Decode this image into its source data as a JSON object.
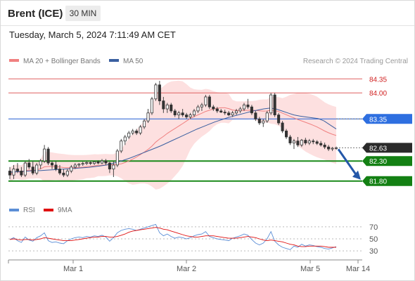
{
  "header": {
    "title": "Brent (ICE)",
    "timeframe": "30 MIN",
    "datetime": "Tuesday, March 5, 2024 7:11:49 AM CET"
  },
  "legend": [
    {
      "name": "MA 20 + Bollinger Bands",
      "color": "#f08080"
    },
    {
      "name": "MA 50",
      "color": "#3a5fa0"
    }
  ],
  "credit": "Research © 2024 Trading Central",
  "chart_data": [
    {
      "type": "candlestick",
      "ylim": [
        81.55,
        84.6
      ],
      "x_ticks": [
        "Mar 1",
        "Mar 2",
        "Mar 5",
        "Mar 14"
      ],
      "levels": [
        {
          "label": "84.35",
          "value": 84.35,
          "style": "resistance"
        },
        {
          "label": "84.00",
          "value": 84.0,
          "style": "resistance"
        },
        {
          "label": "83.35",
          "value": 83.35,
          "style": "ma50"
        },
        {
          "label": "82.63",
          "value": 82.63,
          "style": "last"
        },
        {
          "label": "82.30",
          "value": 82.3,
          "style": "support"
        },
        {
          "label": "81.80",
          "value": 81.8,
          "style": "target"
        }
      ],
      "series": [
        {
          "kind": "ohlc",
          "values": [
            [
              82.05,
              82.15,
              81.85,
              81.95
            ],
            [
              81.95,
              82.2,
              81.85,
              82.1
            ],
            [
              82.1,
              82.25,
              82.0,
              82.05
            ],
            [
              82.05,
              82.15,
              81.9,
              81.95
            ],
            [
              81.95,
              82.3,
              81.9,
              82.25
            ],
            [
              82.25,
              82.35,
              82.1,
              82.15
            ],
            [
              82.15,
              82.3,
              81.95,
              82.0
            ],
            [
              82.0,
              82.25,
              81.95,
              82.2
            ],
            [
              82.2,
              82.35,
              82.1,
              82.3
            ],
            [
              82.3,
              82.7,
              82.25,
              82.6
            ],
            [
              82.6,
              82.65,
              82.2,
              82.25
            ],
            [
              82.25,
              82.3,
              82.1,
              82.2
            ],
            [
              82.2,
              82.3,
              82.05,
              82.1
            ],
            [
              82.1,
              82.2,
              81.95,
              82.0
            ],
            [
              82.0,
              82.1,
              81.9,
              81.95
            ],
            [
              81.95,
              82.1,
              81.9,
              82.05
            ],
            [
              82.05,
              82.2,
              82.0,
              82.15
            ],
            [
              82.15,
              82.25,
              82.1,
              82.2
            ],
            [
              82.2,
              82.25,
              82.15,
              82.22
            ],
            [
              82.22,
              82.28,
              82.18,
              82.24
            ],
            [
              82.24,
              82.3,
              82.2,
              82.26
            ],
            [
              82.26,
              82.3,
              82.2,
              82.24
            ],
            [
              82.24,
              82.3,
              82.2,
              82.28
            ],
            [
              82.28,
              82.32,
              82.22,
              82.25
            ],
            [
              82.25,
              82.35,
              82.22,
              82.3
            ],
            [
              82.3,
              82.35,
              82.2,
              82.25
            ],
            [
              82.25,
              82.28,
              82.0,
              82.1
            ],
            [
              82.1,
              82.3,
              81.9,
              82.2
            ],
            [
              82.2,
              82.6,
              82.15,
              82.55
            ],
            [
              82.55,
              82.85,
              82.5,
              82.8
            ],
            [
              82.8,
              82.95,
              82.7,
              82.9
            ],
            [
              82.9,
              83.05,
              82.85,
              83.0
            ],
            [
              83.0,
              83.1,
              82.95,
              83.05
            ],
            [
              83.05,
              83.1,
              82.95,
              83.0
            ],
            [
              83.0,
              83.2,
              82.95,
              83.15
            ],
            [
              83.15,
              83.35,
              83.1,
              83.3
            ],
            [
              83.3,
              83.6,
              83.25,
              83.5
            ],
            [
              83.5,
              83.9,
              83.45,
              83.85
            ],
            [
              83.85,
              84.25,
              83.8,
              84.2
            ],
            [
              84.2,
              84.3,
              83.7,
              83.8
            ],
            [
              83.8,
              83.9,
              83.5,
              83.6
            ],
            [
              83.6,
              83.75,
              83.5,
              83.7
            ],
            [
              83.7,
              83.75,
              83.5,
              83.55
            ],
            [
              83.55,
              83.6,
              83.4,
              83.45
            ],
            [
              83.45,
              83.55,
              83.35,
              83.5
            ],
            [
              83.5,
              83.6,
              83.4,
              83.45
            ],
            [
              83.45,
              83.5,
              83.35,
              83.4
            ],
            [
              83.4,
              83.5,
              83.35,
              83.45
            ],
            [
              83.45,
              83.6,
              83.4,
              83.55
            ],
            [
              83.55,
              83.7,
              83.5,
              83.65
            ],
            [
              83.65,
              83.75,
              83.55,
              83.7
            ],
            [
              83.7,
              83.95,
              83.65,
              83.9
            ],
            [
              83.9,
              83.95,
              83.6,
              83.65
            ],
            [
              83.65,
              83.7,
              83.55,
              83.6
            ],
            [
              83.6,
              83.65,
              83.5,
              83.55
            ],
            [
              83.55,
              83.6,
              83.5,
              83.52
            ],
            [
              83.52,
              83.58,
              83.45,
              83.5
            ],
            [
              83.5,
              83.55,
              83.42,
              83.45
            ],
            [
              83.45,
              83.55,
              83.4,
              83.5
            ],
            [
              83.5,
              83.6,
              83.45,
              83.55
            ],
            [
              83.55,
              83.65,
              83.5,
              83.6
            ],
            [
              83.6,
              83.75,
              83.55,
              83.7
            ],
            [
              83.7,
              83.85,
              83.6,
              83.65
            ],
            [
              83.65,
              83.7,
              83.45,
              83.5
            ],
            [
              83.5,
              83.55,
              83.3,
              83.35
            ],
            [
              83.35,
              83.4,
              83.2,
              83.25
            ],
            [
              83.25,
              83.35,
              83.15,
              83.3
            ],
            [
              83.3,
              83.55,
              83.25,
              83.5
            ],
            [
              83.5,
              84.0,
              83.45,
              83.95
            ],
            [
              83.95,
              84.0,
              83.4,
              83.45
            ],
            [
              83.45,
              83.5,
              83.2,
              83.25
            ],
            [
              83.25,
              83.3,
              83.0,
              83.05
            ],
            [
              83.05,
              83.1,
              82.85,
              82.9
            ],
            [
              82.9,
              82.95,
              82.7,
              82.75
            ],
            [
              82.75,
              82.85,
              82.6,
              82.8
            ],
            [
              82.8,
              82.9,
              82.65,
              82.7
            ],
            [
              82.7,
              82.85,
              82.65,
              82.82
            ],
            [
              82.82,
              82.88,
              82.7,
              82.75
            ],
            [
              82.75,
              82.85,
              82.7,
              82.8
            ],
            [
              82.8,
              82.85,
              82.72,
              82.78
            ],
            [
              82.78,
              82.82,
              82.7,
              82.74
            ],
            [
              82.74,
              82.8,
              82.66,
              82.7
            ],
            [
              82.7,
              82.76,
              82.6,
              82.65
            ],
            [
              82.65,
              82.7,
              82.55,
              82.6
            ],
            [
              82.6,
              82.65,
              82.55,
              82.62
            ],
            [
              82.62,
              82.66,
              82.58,
              82.63
            ]
          ]
        },
        {
          "name": "MA 50",
          "values": [
            82.02,
            82.03,
            82.04,
            82.05,
            82.06,
            82.06,
            82.07,
            82.08,
            82.09,
            82.1,
            82.11,
            82.12,
            82.13,
            82.14,
            82.16,
            82.18,
            82.2,
            82.24,
            82.28,
            82.33,
            82.38,
            82.44,
            82.5,
            82.56,
            82.62,
            82.68,
            82.75,
            82.82,
            82.89,
            82.96,
            83.03,
            83.1,
            83.16,
            83.22,
            83.28,
            83.33,
            83.38,
            83.42,
            83.46,
            83.5,
            83.54,
            83.57,
            83.6,
            83.62,
            83.6,
            83.55,
            83.5,
            83.45,
            83.42,
            83.4,
            83.38,
            83.36,
            83.3,
            83.2,
            83.1
          ]
        }
      ],
      "projection": {
        "from": 82.63,
        "to": 81.8
      }
    },
    {
      "type": "line",
      "ylim": [
        22,
        78
      ],
      "y_ticks": [
        "70",
        "50",
        "30"
      ],
      "series": [
        {
          "name": "RSI",
          "values": [
            49,
            52,
            47,
            44,
            53,
            48,
            46,
            52,
            55,
            60,
            47,
            44,
            45,
            43,
            42,
            47,
            50,
            52,
            53,
            52,
            54,
            53,
            55,
            54,
            56,
            53,
            46,
            52,
            60,
            64,
            66,
            67,
            66,
            64,
            66,
            68,
            70,
            72,
            74,
            60,
            55,
            58,
            54,
            51,
            53,
            52,
            50,
            52,
            55,
            57,
            58,
            62,
            54,
            52,
            50,
            49,
            48,
            47,
            51,
            53,
            55,
            58,
            56,
            49,
            43,
            40,
            43,
            50,
            62,
            46,
            40,
            36,
            34,
            32,
            38,
            36,
            41,
            38,
            40,
            39,
            37,
            36,
            34,
            33,
            35,
            37
          ]
        },
        {
          "name": "9MA",
          "values": [
            49,
            50,
            49,
            48,
            49,
            49,
            48,
            49,
            50,
            52,
            51,
            50,
            49,
            48,
            47,
            47,
            47,
            48,
            49,
            50,
            51,
            52,
            53,
            53,
            54,
            54,
            53,
            53,
            54,
            56,
            58,
            61,
            63,
            64,
            65,
            66,
            67,
            68,
            69,
            68,
            66,
            65,
            63,
            61,
            59,
            57,
            55,
            54,
            53,
            53,
            54,
            55,
            55,
            55,
            54,
            53,
            52,
            51,
            51,
            51,
            52,
            53,
            54,
            53,
            52,
            50,
            48,
            47,
            48,
            47,
            46,
            45,
            43,
            41,
            40,
            38,
            37,
            37,
            38,
            38,
            38,
            38,
            37,
            36,
            36,
            36
          ]
        }
      ]
    }
  ]
}
